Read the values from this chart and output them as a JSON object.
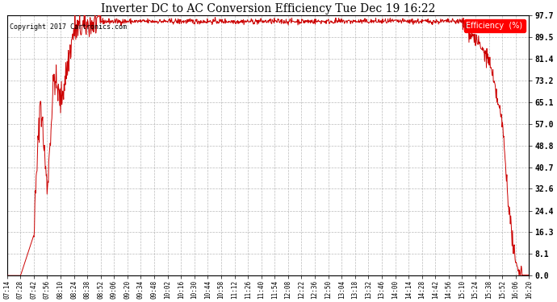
{
  "title": "Inverter DC to AC Conversion Efficiency Tue Dec 19 16:22",
  "copyright": "Copyright 2017 Cartronics.com",
  "legend_label": "Efficiency  (%)",
  "yticks": [
    0.0,
    8.1,
    16.3,
    24.4,
    32.6,
    40.7,
    48.8,
    57.0,
    65.1,
    73.2,
    81.4,
    89.5,
    97.7
  ],
  "ylim": [
    0.0,
    97.7
  ],
  "line_color": "#cc0000",
  "background_color": "#ffffff",
  "grid_color": "#aaaaaa",
  "xtick_labels": [
    "07:14",
    "07:28",
    "07:42",
    "07:56",
    "08:10",
    "08:24",
    "08:38",
    "08:52",
    "09:06",
    "09:20",
    "09:34",
    "09:48",
    "10:02",
    "10:16",
    "10:30",
    "10:44",
    "10:58",
    "11:12",
    "11:26",
    "11:40",
    "11:54",
    "12:08",
    "12:22",
    "12:36",
    "12:50",
    "13:04",
    "13:18",
    "13:32",
    "13:46",
    "14:00",
    "14:14",
    "14:28",
    "14:42",
    "14:56",
    "15:10",
    "15:24",
    "15:38",
    "15:52",
    "16:06",
    "16:20"
  ],
  "figsize": [
    6.9,
    3.75
  ],
  "dpi": 100
}
